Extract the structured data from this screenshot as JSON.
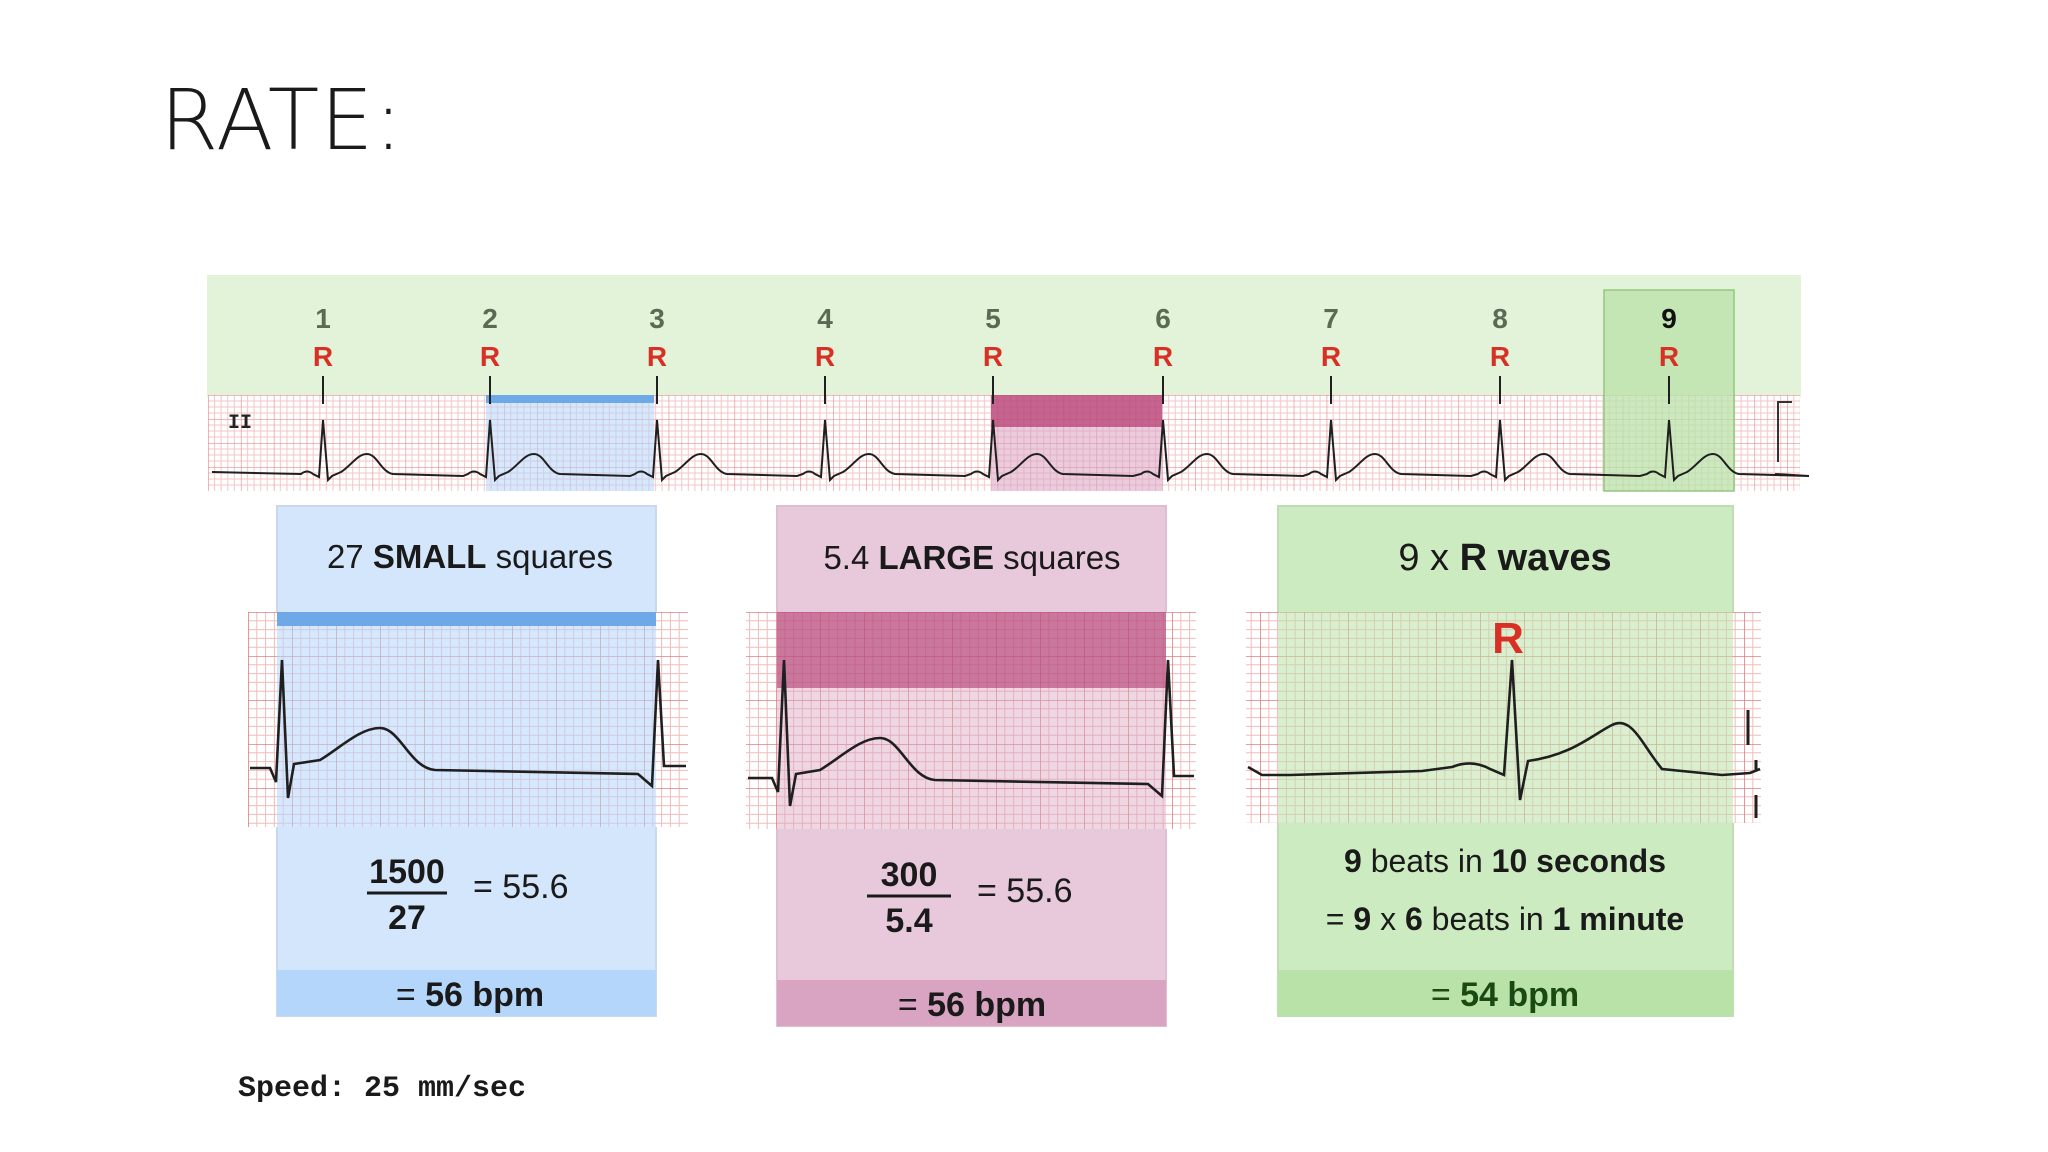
{
  "slide": {
    "title": "RATE:"
  },
  "strip": {
    "lead": "II",
    "beats": [
      {
        "num": "1",
        "label": "R"
      },
      {
        "num": "2",
        "label": "R"
      },
      {
        "num": "3",
        "label": "R"
      },
      {
        "num": "4",
        "label": "R"
      },
      {
        "num": "5",
        "label": "R"
      },
      {
        "num": "6",
        "label": "R"
      },
      {
        "num": "7",
        "label": "R"
      },
      {
        "num": "8",
        "label": "R"
      },
      {
        "num": "9",
        "label": "R"
      }
    ],
    "speed": "Speed: 25 mm/sec"
  },
  "panels": {
    "small": {
      "heading_pre": "27 ",
      "heading_bold": "SMALL",
      "heading_post": " squares",
      "numerator": "1500",
      "denominator": "27",
      "equals": "= 55.6",
      "result_pre": "= ",
      "result_bold": "56 bpm"
    },
    "large": {
      "heading_pre": "5.4 ",
      "heading_bold": "LARGE",
      "heading_post": " squares",
      "numerator": "300",
      "denominator": "5.4",
      "equals": "= 55.6",
      "result_pre": "= ",
      "result_bold": "56 bpm"
    },
    "rwaves": {
      "heading_pre": "9 x ",
      "heading_bold": "R waves",
      "r_label": "R",
      "line1_a": "9",
      "line1_b": " beats in ",
      "line1_c": "10 seconds",
      "line2_a": "= ",
      "line2_b": "9",
      "line2_c": " x ",
      "line2_d": "6",
      "line2_e": " beats in ",
      "line2_f": "1 minute",
      "result_pre": "= ",
      "result_bold": "54 bpm"
    }
  },
  "colors": {
    "green_bg": "#e3f3d9",
    "green_panel": "#ccebc0",
    "green_band": "#b9e2a8",
    "blue_panel": "#d3e6fb",
    "blue_band": "#b5d6fb",
    "pink_panel": "#e8c9dc",
    "pink_band": "#d9a3c2",
    "pink_dark": "#b3376e",
    "r_red": "#d93025",
    "grid_minor": "#f3c1c1",
    "grid_major": "#e38b8b"
  }
}
